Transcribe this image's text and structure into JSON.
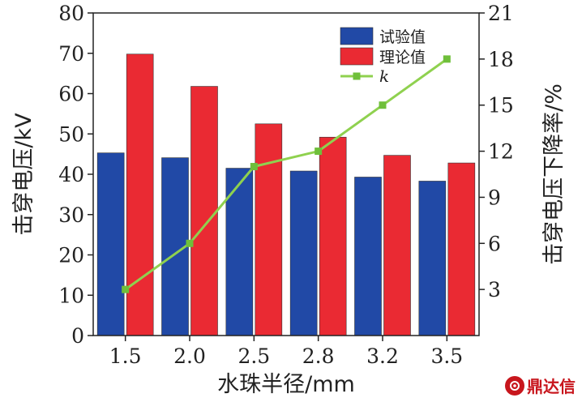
{
  "chart_data": {
    "type": "bar",
    "categories": [
      "1.5",
      "2.0",
      "2.5",
      "2.8",
      "3.2",
      "3.5"
    ],
    "series": [
      {
        "name": "试验值",
        "axis": "left",
        "kind": "bar",
        "color": "#2149a6",
        "values": [
          45.3,
          44.1,
          41.5,
          40.8,
          39.3,
          38.3
        ]
      },
      {
        "name": "理论值",
        "axis": "left",
        "kind": "bar",
        "color": "#ea2a33",
        "values": [
          69.8,
          61.8,
          52.5,
          49.2,
          44.7,
          42.8
        ]
      },
      {
        "name": "k",
        "axis": "right",
        "kind": "line",
        "color": "#8fd14f",
        "values": [
          3,
          6,
          11,
          12,
          15,
          18
        ]
      }
    ],
    "xlabel": "水珠半径/mm",
    "ylabel": "击穿电压/kV",
    "ylabel_right": "击穿电压下降率/%",
    "ylim": [
      0,
      80
    ],
    "ylim_right": [
      0,
      21
    ],
    "yticks": [
      "0",
      "10",
      "20",
      "30",
      "40",
      "50",
      "60",
      "70",
      "80"
    ],
    "yticks_right": [
      "3",
      "6",
      "9",
      "12",
      "15",
      "18",
      "21"
    ],
    "grid": false,
    "legend": "top-right"
  },
  "watermark": {
    "text": "鼎达信"
  }
}
